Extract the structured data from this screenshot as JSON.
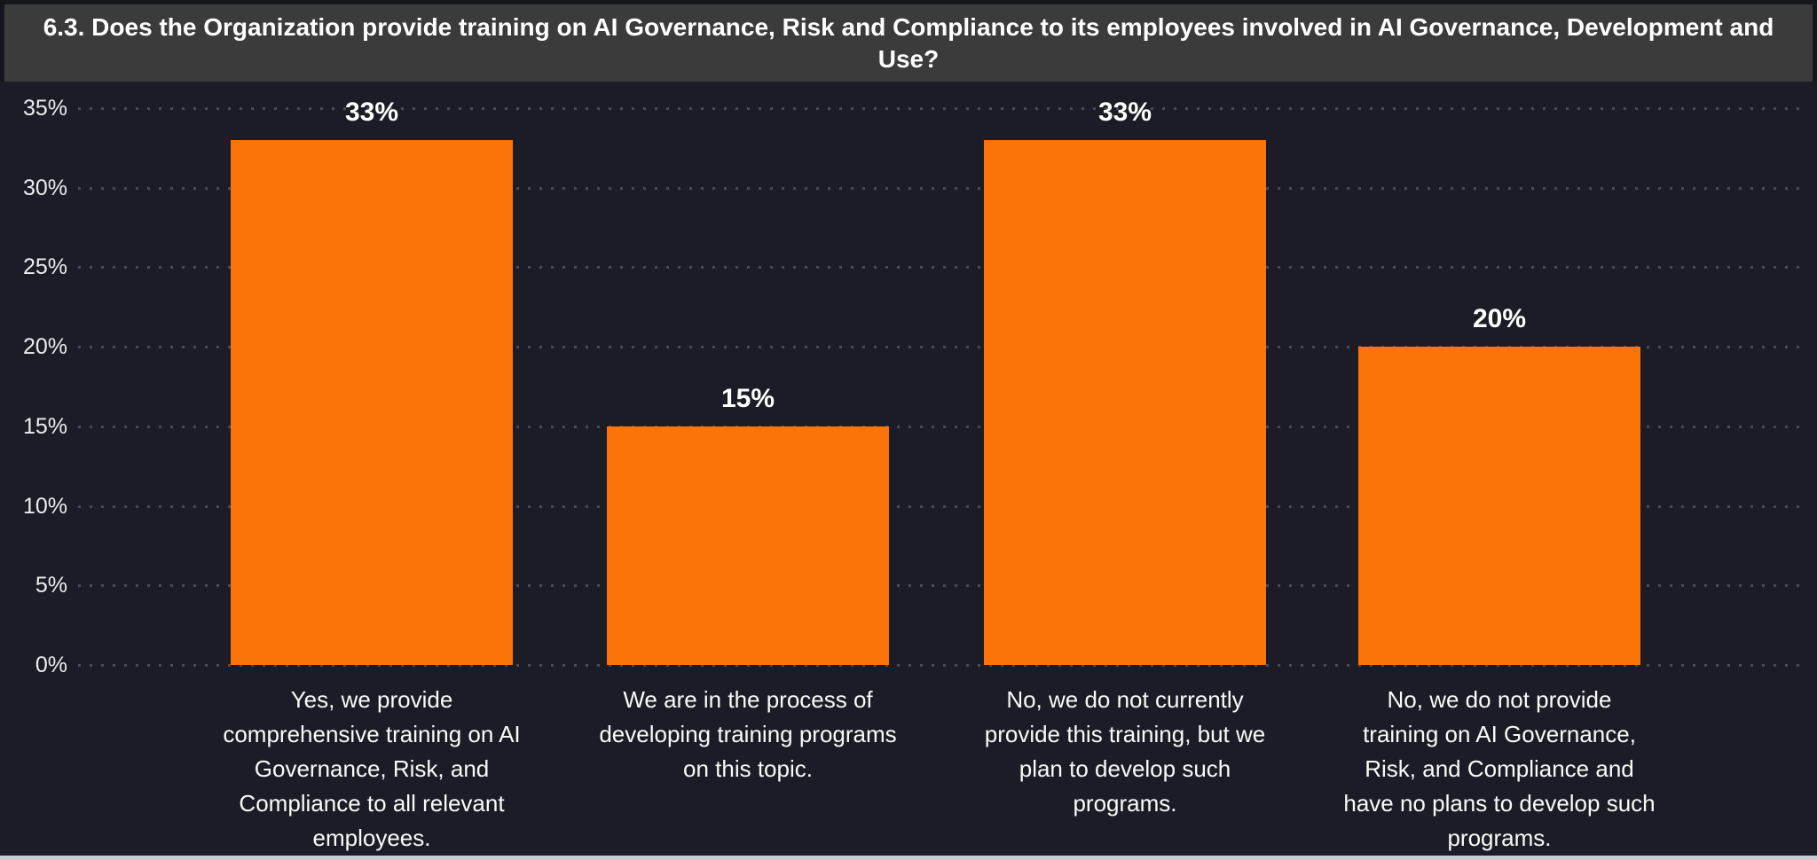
{
  "header": {
    "title": "6.3. Does the Organization provide training on AI Governance, Risk and Compliance to its employees involved in AI Governance, Development and Use?"
  },
  "colors": {
    "bar": "#FB7409",
    "chart_background": "#1C1C26",
    "title_background": "#3B3B3B",
    "frame": "#15151C",
    "gridline": "#4A4A56",
    "tick_text": "#EDEDF0",
    "label_text": "#FFFFFF",
    "bottom_strip": "#C7CCD6"
  },
  "chart_data": {
    "type": "bar",
    "title": "6.3. Does the Organization provide training on AI Governance, Risk and Compliance to its employees involved in AI Governance, Development and Use?",
    "categories": [
      "Yes, we provide comprehensive training on AI Governance, Risk, and Compliance to all relevant employees.",
      "We are in the process of developing training programs on this topic.",
      "No, we do not currently provide this training, but we plan to develop such programs.",
      "No, we do not provide training on AI Governance, Risk, and Compliance and have no plans to develop such programs."
    ],
    "category_lines": [
      [
        "Yes, we provide",
        "comprehensive training on AI",
        "Governance, Risk, and",
        "Compliance to all relevant",
        "employees."
      ],
      [
        "We are in the process of",
        "developing training programs",
        "on this topic."
      ],
      [
        "No, we do not currently",
        "provide this training, but we",
        "plan to develop such",
        "programs."
      ],
      [
        "No, we do not provide",
        "training on AI Governance,",
        "Risk, and Compliance and",
        "have no plans to develop such",
        "programs."
      ]
    ],
    "values": [
      33,
      15,
      33,
      20
    ],
    "value_labels": [
      "33%",
      "15%",
      "33%",
      "20%"
    ],
    "xlabel": "",
    "ylabel": "",
    "y_tick_values": [
      0,
      5,
      10,
      15,
      20,
      25,
      30,
      35
    ],
    "y_tick_labels": [
      "0%",
      "5%",
      "10%",
      "15%",
      "20%",
      "25%",
      "30%",
      "35%"
    ],
    "ylim": [
      0,
      35
    ],
    "grid": "horizontal-dotted",
    "legend": "none",
    "bar_color": "#FB7409"
  }
}
